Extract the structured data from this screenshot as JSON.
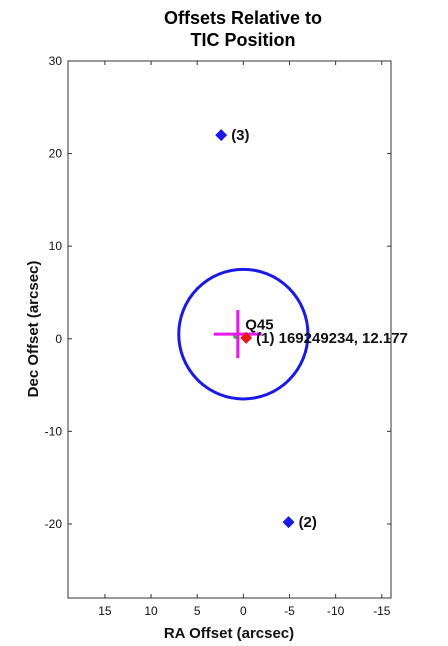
{
  "chart_data": {
    "type": "scatter",
    "title": [
      "Offsets Relative to",
      "TIC Position"
    ],
    "xlabel": "RA Offset (arcsec)",
    "ylabel": "Dec Offset (arcsec)",
    "xlim": [
      19,
      -16
    ],
    "ylim": [
      -28,
      30
    ],
    "x_reversed": true,
    "xticks": [
      15,
      10,
      5,
      0,
      -5,
      -10,
      -15
    ],
    "xtick_labels": [
      "15",
      "10",
      "5",
      "0",
      "-5",
      "-10",
      "-15"
    ],
    "yticks": [
      30,
      20,
      10,
      0,
      -10,
      -20
    ],
    "ytick_labels": [
      "30",
      "20",
      "10",
      "0",
      "-10",
      "-20"
    ],
    "grid": false,
    "circle": {
      "cx": 0,
      "cy": 0.5,
      "r": 7.0,
      "color": "#1a1ae6"
    },
    "crosshair": {
      "x": 0.6,
      "y": 0.5,
      "x_halfwidth": 2.6,
      "y_halfheight": 2.6,
      "color": "#e619e6"
    },
    "points": [
      {
        "x": 2.4,
        "y": 22.0,
        "label": "(3)",
        "color": "#1a1ae6",
        "marker": "diamond"
      },
      {
        "x": -4.9,
        "y": -19.8,
        "label": "(2)",
        "color": "#1a1ae6",
        "marker": "diamond"
      },
      {
        "x": -0.3,
        "y": 0.1,
        "label": "(1) 169249234, 12.177",
        "color": "#e61919",
        "marker": "diamond"
      },
      {
        "x": 0.8,
        "y": 0.3,
        "label": "",
        "color": "#19c819",
        "marker": "dot"
      }
    ],
    "annotations": [
      {
        "x": -0.2,
        "y": 0.8,
        "text": "Q45"
      }
    ]
  }
}
